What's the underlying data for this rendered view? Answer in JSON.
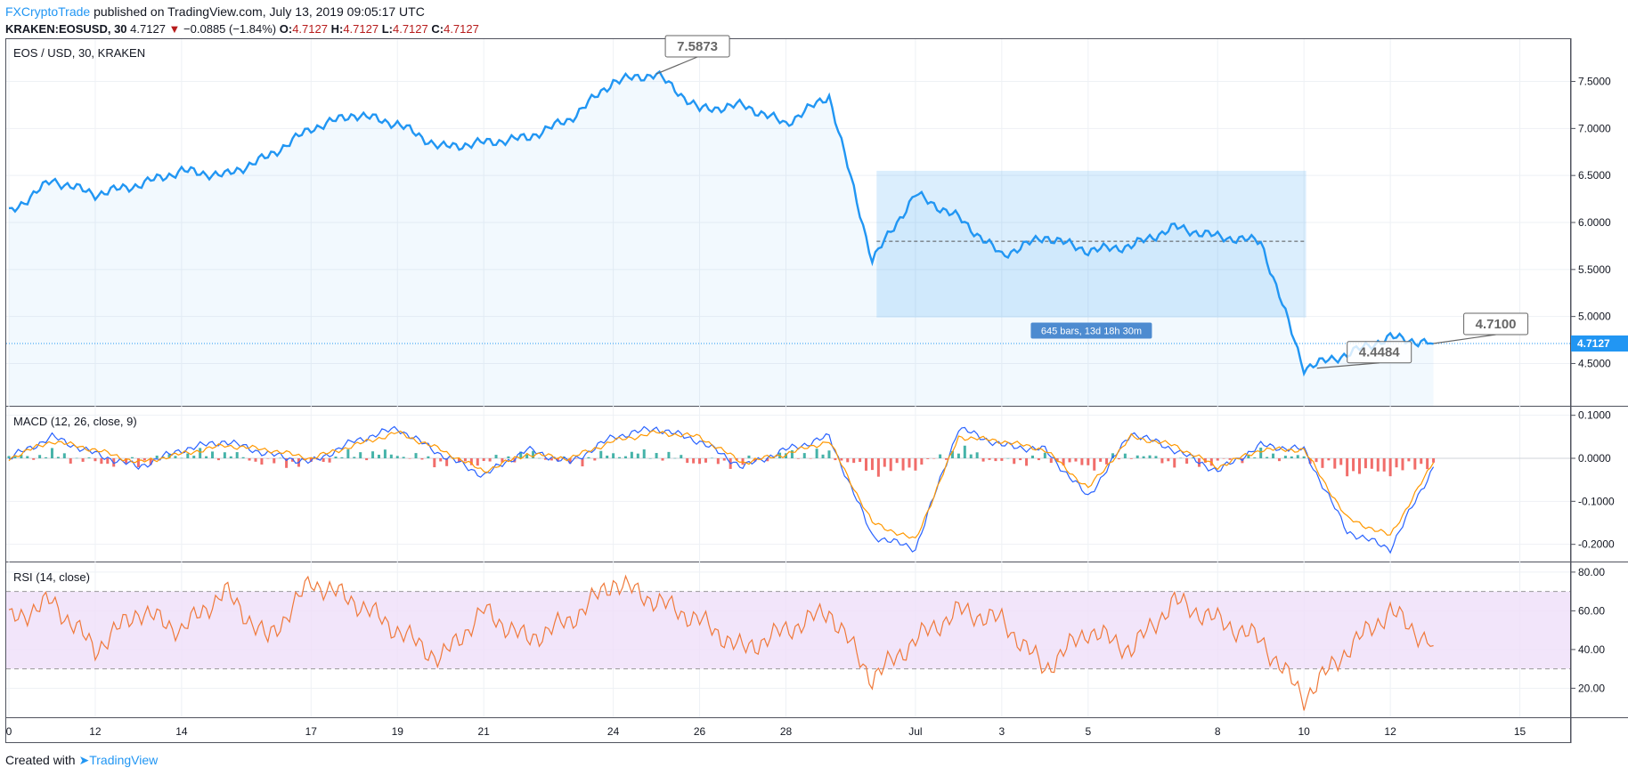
{
  "header": {
    "brand": "FXCryptoTrade",
    "published": "published on TradingView.com, July 13, 2019 09:05:17 UTC",
    "symbol": "KRAKEN:EOSUSD, 30",
    "last": "4.7127",
    "change_arrow": "▼",
    "change": "−0.0885 (−1.84%)",
    "o_label": "O:",
    "o_value": "4.7127",
    "h_label": "H:",
    "h_value": "4.7127",
    "l_label": "L:",
    "l_value": "4.7127",
    "c_label": "C:",
    "c_value": "4.7127"
  },
  "footer": {
    "created": "Created with",
    "brand": "TradingView"
  },
  "colors": {
    "price": "#2196f3",
    "macd": "#2962ff",
    "signal": "#ff9800",
    "rsi": "#f0793a",
    "hist_up": "#26a69a",
    "hist_down": "#ef5350",
    "rsi_band": "#efdff9"
  },
  "chart_data": [
    {
      "type": "line",
      "title": "EOS / USD, 30, KRAKEN",
      "ylim": [
        4.05,
        7.95
      ],
      "y_ticks": [
        "7.5000",
        "7.0000",
        "6.5000",
        "6.0000",
        "5.5000",
        "5.0000",
        "4.5000"
      ],
      "x": [
        0,
        1,
        2,
        3,
        4,
        5,
        6,
        7,
        8,
        9,
        10,
        11,
        12,
        13,
        14,
        15,
        16,
        17,
        18,
        19,
        20,
        21,
        22,
        23,
        24,
        25,
        26,
        27,
        28,
        29,
        30,
        31,
        32,
        33
      ],
      "series": [
        {
          "values": [
            6.1,
            6.45,
            6.3,
            6.4,
            6.55,
            6.5,
            6.7,
            7.0,
            7.15,
            7.05,
            6.8,
            6.85,
            6.9,
            7.1,
            7.5,
            7.58,
            7.2,
            7.25,
            7.05,
            7.35,
            5.6,
            6.3,
            6.05,
            5.65,
            5.85,
            5.7,
            5.75,
            5.95,
            5.85,
            5.8,
            4.45,
            4.6,
            4.78,
            4.71
          ]
        }
      ],
      "annotations": {
        "high_label": "7.5873",
        "low_label": "4.4484",
        "last_label": "4.7100",
        "price_tag": "4.7127",
        "range_label": "645 bars, 13d 18h 30m"
      }
    },
    {
      "type": "line",
      "title": "MACD (12, 26, close, 9)",
      "ylim": [
        -0.24,
        0.12
      ],
      "y_ticks": [
        "0.1000",
        "0.0000",
        "-0.1000",
        "-0.2000"
      ],
      "series": [
        {
          "values": [
            0.0,
            0.05,
            0.01,
            -0.02,
            0.02,
            0.04,
            0.01,
            -0.01,
            0.04,
            0.07,
            0.01,
            -0.04,
            0.02,
            -0.01,
            0.05,
            0.07,
            0.04,
            -0.02,
            0.02,
            0.05,
            -0.18,
            -0.21,
            0.07,
            0.03,
            0.02,
            -0.09,
            0.06,
            0.02,
            -0.03,
            0.03,
            0.02,
            -0.17,
            -0.21,
            -0.02
          ]
        },
        {
          "values": [
            0.0,
            0.04,
            0.02,
            -0.01,
            0.01,
            0.03,
            0.02,
            0.0,
            0.03,
            0.06,
            0.02,
            -0.03,
            0.01,
            0.0,
            0.04,
            0.06,
            0.05,
            -0.01,
            0.01,
            0.04,
            -0.15,
            -0.19,
            0.05,
            0.04,
            0.02,
            -0.07,
            0.05,
            0.03,
            -0.02,
            0.02,
            0.02,
            -0.14,
            -0.18,
            -0.01
          ]
        }
      ]
    },
    {
      "type": "line",
      "title": "RSI (14, close)",
      "ylim": [
        5,
        85
      ],
      "y_ticks": [
        "80.00",
        "60.00",
        "40.00",
        "20.00"
      ],
      "bands": [
        30,
        70
      ],
      "series": [
        {
          "values": [
            55,
            65,
            40,
            60,
            50,
            70,
            45,
            75,
            65,
            50,
            35,
            60,
            45,
            55,
            75,
            65,
            55,
            40,
            50,
            60,
            25,
            45,
            60,
            55,
            30,
            50,
            40,
            65,
            55,
            45,
            15,
            40,
            60,
            42
          ]
        }
      ]
    }
  ],
  "x_axis": {
    "labels": [
      {
        "text": "0",
        "x": 0
      },
      {
        "text": "12",
        "x": 2
      },
      {
        "text": "14",
        "x": 4
      },
      {
        "text": "17",
        "x": 7
      },
      {
        "text": "19",
        "x": 9
      },
      {
        "text": "21",
        "x": 11
      },
      {
        "text": "24",
        "x": 14
      },
      {
        "text": "26",
        "x": 16
      },
      {
        "text": "28",
        "x": 18
      },
      {
        "text": "Jul",
        "x": 21
      },
      {
        "text": "3",
        "x": 23
      },
      {
        "text": "5",
        "x": 25
      },
      {
        "text": "8",
        "x": 28
      },
      {
        "text": "10",
        "x": 30
      },
      {
        "text": "12",
        "x": 32
      },
      {
        "text": "15",
        "x": 35
      }
    ]
  }
}
